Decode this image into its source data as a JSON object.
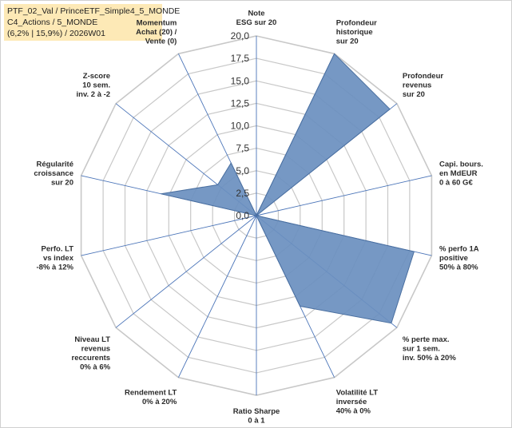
{
  "header": {
    "line1": "PTF_02_Val / PrinceETF_Simple4_5_MONDE",
    "line2": "C4_Actions / 5_MONDE",
    "line3": "(6,2% | 15,9%) / 2026W01"
  },
  "colors": {
    "fill": "#6a8fbf",
    "stroke": "#4a6fa0",
    "grid": "#c8c8c8",
    "spoke": "#4a74b8",
    "header_bg": "#fde9b6"
  },
  "chart_data": {
    "type": "radar",
    "rmax": 20,
    "ticks": [
      "0,0",
      "2,5",
      "5,0",
      "7,5",
      "10,0",
      "12,5",
      "15,0",
      "17,5",
      "20,0"
    ],
    "axes": [
      {
        "label": [
          "Note",
          "ESG sur 20"
        ],
        "value": 0
      },
      {
        "label": [
          "Profondeur",
          "historique",
          "sur 20"
        ],
        "value": 20
      },
      {
        "label": [
          "Profondeur",
          "revenus",
          "sur 20"
        ],
        "value": 19
      },
      {
        "label": [
          "Capi. bours.",
          "en MdEUR",
          "0 à 60 G€"
        ],
        "value": 0
      },
      {
        "label": [
          "% perfo 1A",
          "positive",
          "50% à 80%"
        ],
        "value": 18
      },
      {
        "label": [
          "% perte max.",
          "sur 1 sem.",
          "inv. 50% à 20%"
        ],
        "value": 19.2
      },
      {
        "label": [
          "Volatilité LT",
          "inversée",
          "40% à 0%"
        ],
        "value": 11.2
      },
      {
        "label": [
          "Ratio Sharpe",
          "0 à 1"
        ],
        "value": 0
      },
      {
        "label": [
          "Rendement LT",
          "0% à 20%"
        ],
        "value": 0
      },
      {
        "label": [
          "Niveau LT",
          "revenus",
          "reccurents",
          "0% à 6%"
        ],
        "value": 0
      },
      {
        "label": [
          "Perfo. LT",
          "vs index",
          "-8% à 12%"
        ],
        "value": 0
      },
      {
        "label": [
          "Régularité",
          "croissance",
          "sur 20"
        ],
        "value": 10.9
      },
      {
        "label": [
          "Z-score",
          "10 sem.",
          "inv. 2 à -2"
        ],
        "value": 5.5
      },
      {
        "label": [
          "Momentum",
          "Achat (20) /",
          "Vente (0)"
        ],
        "value": 6.5
      }
    ]
  }
}
